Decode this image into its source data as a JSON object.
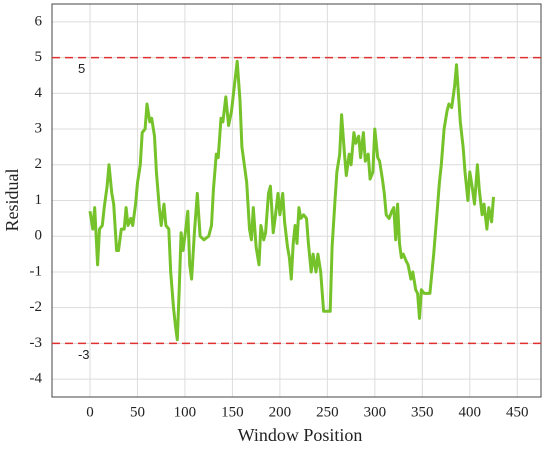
{
  "chart_data": {
    "type": "line",
    "xlabel": "Window Position",
    "ylabel": "Residual",
    "xlim": [
      -40,
      475
    ],
    "ylim": [
      -4.5,
      6.5
    ],
    "xticks": [
      0,
      50,
      100,
      150,
      200,
      250,
      300,
      350,
      400,
      450
    ],
    "yticks": [
      -4,
      -3,
      -2,
      -1,
      0,
      1,
      2,
      3,
      4,
      5,
      6
    ],
    "grid": true,
    "hlines": [
      5,
      -3
    ],
    "hline_color": "#e03030",
    "series": [
      {
        "name": "Residual",
        "color": "#76c22a",
        "x": [
          0,
          3,
          5,
          8,
          10,
          13,
          15,
          18,
          20,
          23,
          25,
          28,
          30,
          33,
          36,
          38,
          40,
          43,
          45,
          48,
          50,
          53,
          55,
          58,
          60,
          63,
          65,
          68,
          70,
          73,
          75,
          78,
          80,
          83,
          85,
          88,
          90,
          92,
          94,
          96,
          98,
          100,
          103,
          105,
          107,
          110,
          113,
          116,
          120,
          125,
          128,
          130,
          133,
          135,
          138,
          140,
          143,
          146,
          149,
          152,
          155,
          158,
          160,
          163,
          165,
          168,
          170,
          172,
          175,
          178,
          180,
          183,
          185,
          188,
          190,
          193,
          195,
          198,
          200,
          203,
          205,
          208,
          210,
          212,
          214,
          216,
          218,
          220,
          222,
          225,
          228,
          230,
          233,
          235,
          238,
          240,
          243,
          246,
          250,
          253,
          255,
          258,
          260,
          263,
          265,
          268,
          270,
          273,
          275,
          278,
          280,
          283,
          285,
          288,
          290,
          293,
          295,
          298,
          300,
          303,
          305,
          308,
          310,
          312,
          315,
          318,
          320,
          322,
          324,
          326,
          328,
          330,
          333,
          335,
          338,
          340,
          343,
          345,
          347,
          349,
          352,
          355,
          358,
          362,
          365,
          368,
          370,
          373,
          376,
          378,
          381,
          384,
          386,
          388,
          390,
          393,
          395,
          398,
          400,
          403,
          405,
          408,
          410,
          413,
          415,
          418,
          420,
          423,
          425
        ],
        "values": [
          0.7,
          0.2,
          0.8,
          -0.8,
          0.2,
          0.3,
          0.8,
          1.4,
          2.0,
          1.2,
          0.9,
          -0.4,
          -0.4,
          0.2,
          0.2,
          0.8,
          0.3,
          0.5,
          0.3,
          0.9,
          1.5,
          2.0,
          2.9,
          3.0,
          3.7,
          3.2,
          3.3,
          2.8,
          1.8,
          0.8,
          0.3,
          0.9,
          0.3,
          0.2,
          -1.0,
          -2.0,
          -2.5,
          -2.9,
          -1.5,
          0.1,
          -0.4,
          0.0,
          0.7,
          -0.8,
          -1.2,
          0.1,
          1.2,
          0.0,
          -0.1,
          0.0,
          0.3,
          1.3,
          2.3,
          2.2,
          3.3,
          3.2,
          3.9,
          3.1,
          3.5,
          4.2,
          4.9,
          3.8,
          2.5,
          1.9,
          1.5,
          0.2,
          -0.1,
          0.8,
          -0.3,
          -0.8,
          0.3,
          -0.1,
          0.1,
          1.2,
          1.4,
          0.1,
          0.5,
          1.2,
          0.6,
          1.2,
          0.4,
          -0.3,
          -0.6,
          -1.2,
          -0.2,
          0.3,
          -0.2,
          0.8,
          0.5,
          0.6,
          0.5,
          -0.2,
          -1.0,
          -0.5,
          -1.0,
          -0.5,
          -1.0,
          -2.1,
          -2.1,
          -2.1,
          -0.3,
          1.0,
          1.8,
          2.3,
          3.4,
          2.3,
          1.7,
          2.3,
          2.0,
          2.9,
          2.6,
          2.8,
          2.2,
          2.9,
          2.1,
          2.3,
          1.6,
          1.8,
          3.0,
          2.2,
          2.1,
          1.6,
          1.2,
          0.6,
          0.5,
          0.7,
          0.8,
          -0.1,
          0.9,
          -0.2,
          -0.6,
          -0.5,
          -0.7,
          -0.8,
          -1.2,
          -1.0,
          -1.5,
          -1.6,
          -2.3,
          -1.5,
          -1.6,
          -1.6,
          -1.6,
          -0.5,
          0.5,
          1.5,
          2.0,
          3.0,
          3.5,
          3.7,
          3.6,
          4.2,
          4.8,
          4.0,
          3.2,
          2.5,
          1.8,
          1.0,
          1.8,
          1.3,
          0.9,
          2.0,
          1.3,
          0.6,
          0.9,
          0.2,
          0.8,
          0.4,
          1.1
        ]
      }
    ]
  }
}
